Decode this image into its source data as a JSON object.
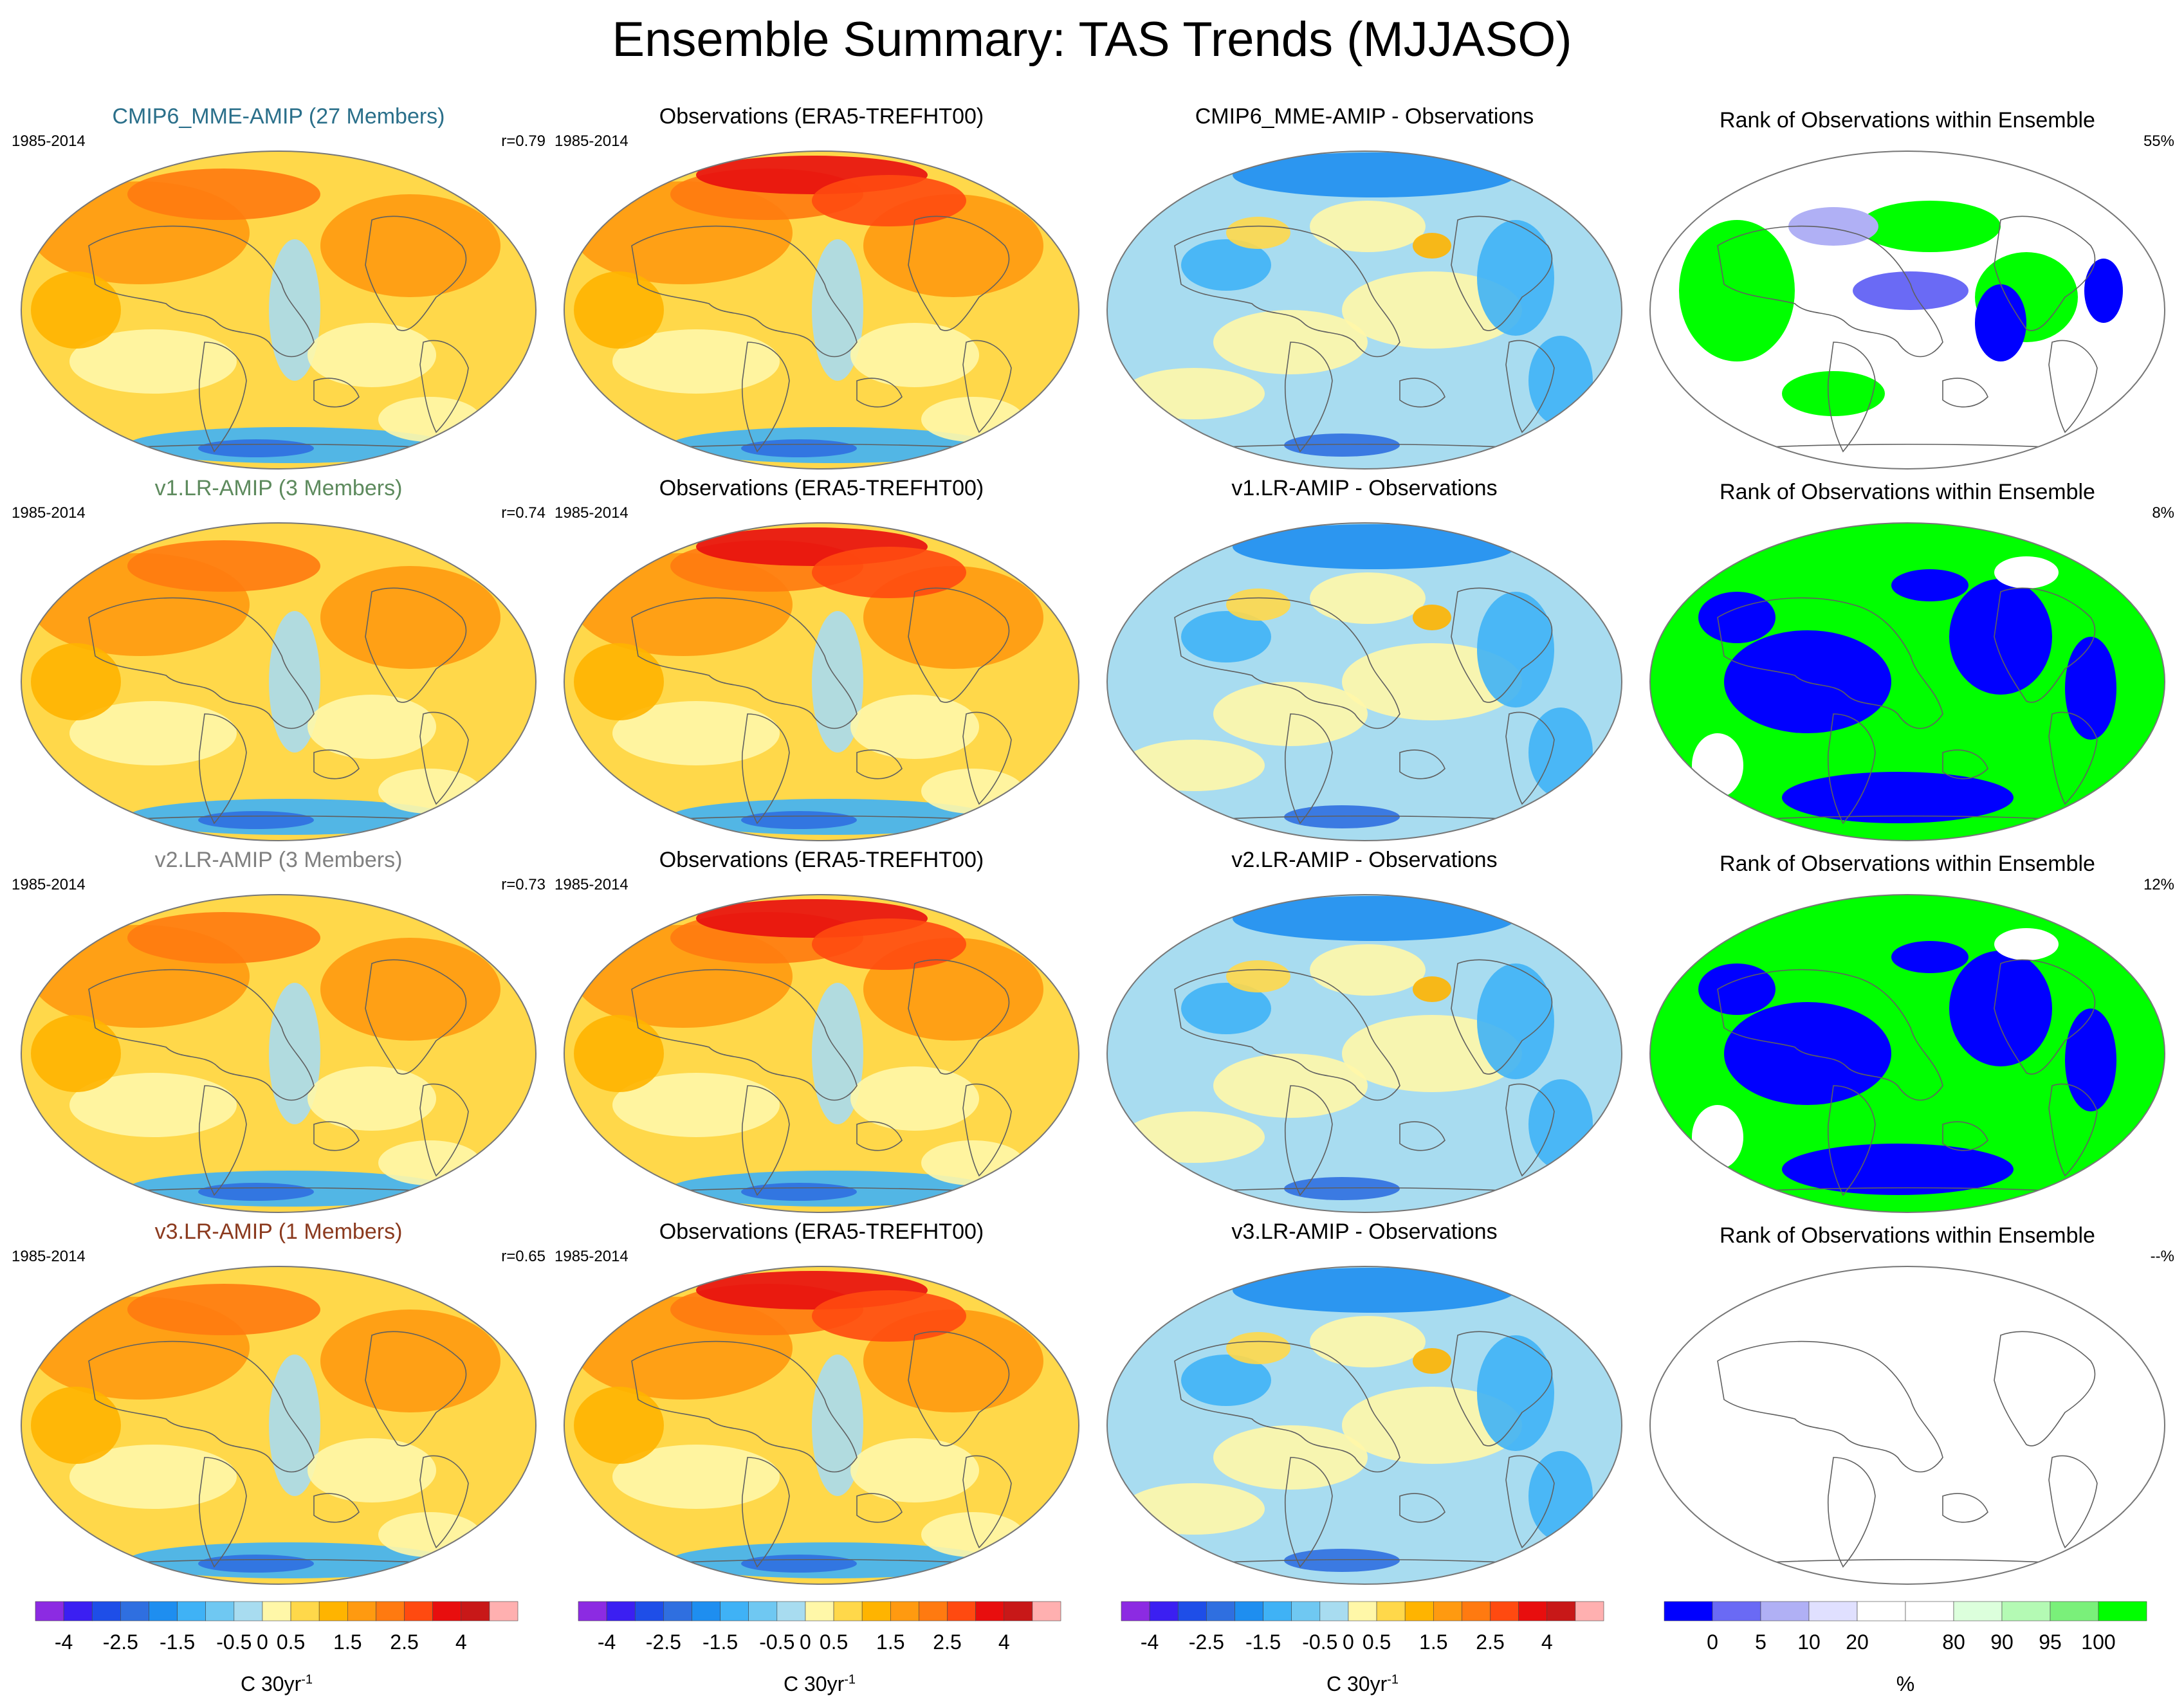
{
  "title": "Ensemble Summary: TAS Trends (MJJASO)",
  "period": "1985-2014",
  "rows": [
    {
      "model": {
        "label": "CMIP6_MME-AMIP (27 Members)",
        "color": "#2a6f8a",
        "stat": "r=0.79"
      },
      "obs": {
        "label": "Observations (ERA5-TREFHT00)"
      },
      "diff": {
        "label": "CMIP6_MME-AMIP - Observations"
      },
      "rank": {
        "label": "Rank of Observations within Ensemble",
        "stat": "55%"
      }
    },
    {
      "model": {
        "label": "v1.LR-AMIP (3 Members)",
        "color": "#5d8a5d",
        "stat": "r=0.74"
      },
      "obs": {
        "label": "Observations (ERA5-TREFHT00)"
      },
      "diff": {
        "label": "v1.LR-AMIP - Observations"
      },
      "rank": {
        "label": "Rank of Observations within Ensemble",
        "stat": "8%"
      }
    },
    {
      "model": {
        "label": "v2.LR-AMIP (3 Members)",
        "color": "#808080",
        "stat": "r=0.73"
      },
      "obs": {
        "label": "Observations (ERA5-TREFHT00)"
      },
      "diff": {
        "label": "v2.LR-AMIP - Observations"
      },
      "rank": {
        "label": "Rank of Observations within Ensemble",
        "stat": "12%"
      }
    },
    {
      "model": {
        "label": "v3.LR-AMIP (1 Members)",
        "color": "#8b3a1e",
        "stat": "r=0.65"
      },
      "obs": {
        "label": "Observations (ERA5-TREFHT00)"
      },
      "diff": {
        "label": "v3.LR-AMIP - Observations"
      },
      "rank": {
        "label": "Rank of Observations within Ensemble",
        "stat": "--%"
      }
    }
  ],
  "temp_scale": {
    "colors": [
      "#8c2be2",
      "#3b1ff2",
      "#1e4ee8",
      "#2f6fe0",
      "#1e8ef0",
      "#3fb2f6",
      "#6fc8f2",
      "#a8dcf0",
      "#fff7a8",
      "#ffd84a",
      "#ffb400",
      "#ff9a10",
      "#ff7a10",
      "#ff4a10",
      "#e80e0e",
      "#c81818",
      "#ffb0b0"
    ],
    "tick_labels": [
      "-4",
      "-2.5",
      "-1.5",
      "-0.5",
      "0",
      "0.5",
      "1.5",
      "2.5",
      "4"
    ],
    "unit_prefix": "C 30yr",
    "unit_power": "-1"
  },
  "rank_scale": {
    "colors": [
      "#0000ff",
      "#6a6af5",
      "#b0b0f5",
      "#e0e0ff",
      "#ffffff",
      "#ffffff",
      "#dcffdc",
      "#b4fab4",
      "#7af07a",
      "#00ff00"
    ],
    "tick_labels": [
      "0",
      "5",
      "10",
      "20",
      "80",
      "90",
      "95",
      "100"
    ],
    "unit": "%"
  }
}
